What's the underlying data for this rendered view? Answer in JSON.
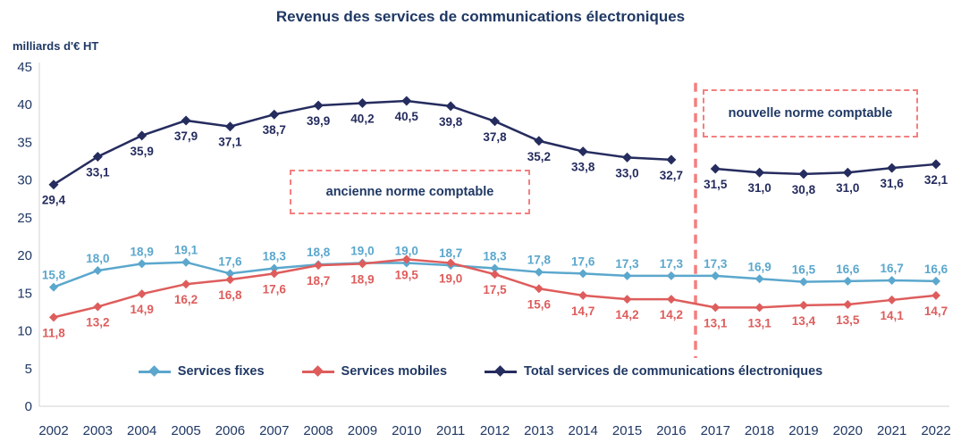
{
  "title": "Revenus des services de communications électroniques",
  "y_axis_label": "milliards d'€ HT",
  "annotations": {
    "old_standard": "ancienne norme comptable",
    "new_standard": "nouvelle norme comptable"
  },
  "colors": {
    "title_text": "#1F3864",
    "axis_text": "#1F3864",
    "axis_line": "#D0D0D0",
    "dashed_accent": "#F47F7F",
    "fixes": "#5BA7CD",
    "mobiles": "#DE5D5C",
    "total": "#252C5E"
  },
  "chart_data": {
    "type": "line",
    "title": "Revenus des services de communications électroniques",
    "ylabel": "milliards d'€ HT",
    "ylim": [
      0,
      45
    ],
    "y_ticks": [
      0,
      5,
      10,
      15,
      20,
      25,
      30,
      35,
      40,
      45
    ],
    "grid": false,
    "legend_position": "bottom",
    "categories": [
      2002,
      2003,
      2004,
      2005,
      2006,
      2007,
      2008,
      2009,
      2010,
      2011,
      2012,
      2013,
      2014,
      2015,
      2016,
      2017,
      2018,
      2019,
      2020,
      2021,
      2022
    ],
    "series": [
      {
        "name": "Services fixes",
        "color": "#5BA7CD",
        "values": [
          15.8,
          18.0,
          18.9,
          19.1,
          17.6,
          18.3,
          18.8,
          19.0,
          19.0,
          18.7,
          18.3,
          17.8,
          17.6,
          17.3,
          17.3,
          17.3,
          16.9,
          16.5,
          16.6,
          16.7,
          16.6
        ]
      },
      {
        "name": "Services mobiles",
        "color": "#DE5D5C",
        "values": [
          11.8,
          13.2,
          14.9,
          16.2,
          16.8,
          17.6,
          18.7,
          18.9,
          19.5,
          19.0,
          17.5,
          15.6,
          14.7,
          14.2,
          14.2,
          13.1,
          13.1,
          13.4,
          13.5,
          14.1,
          14.7
        ]
      },
      {
        "name": "Total services de communications électroniques",
        "color": "#252C5E",
        "break_after_index": 14,
        "values": [
          29.4,
          33.1,
          35.9,
          37.9,
          37.1,
          38.7,
          39.9,
          40.2,
          40.5,
          39.8,
          37.8,
          35.2,
          33.8,
          33.0,
          32.7,
          31.5,
          31.0,
          30.8,
          31.0,
          31.6,
          32.1
        ]
      }
    ]
  }
}
